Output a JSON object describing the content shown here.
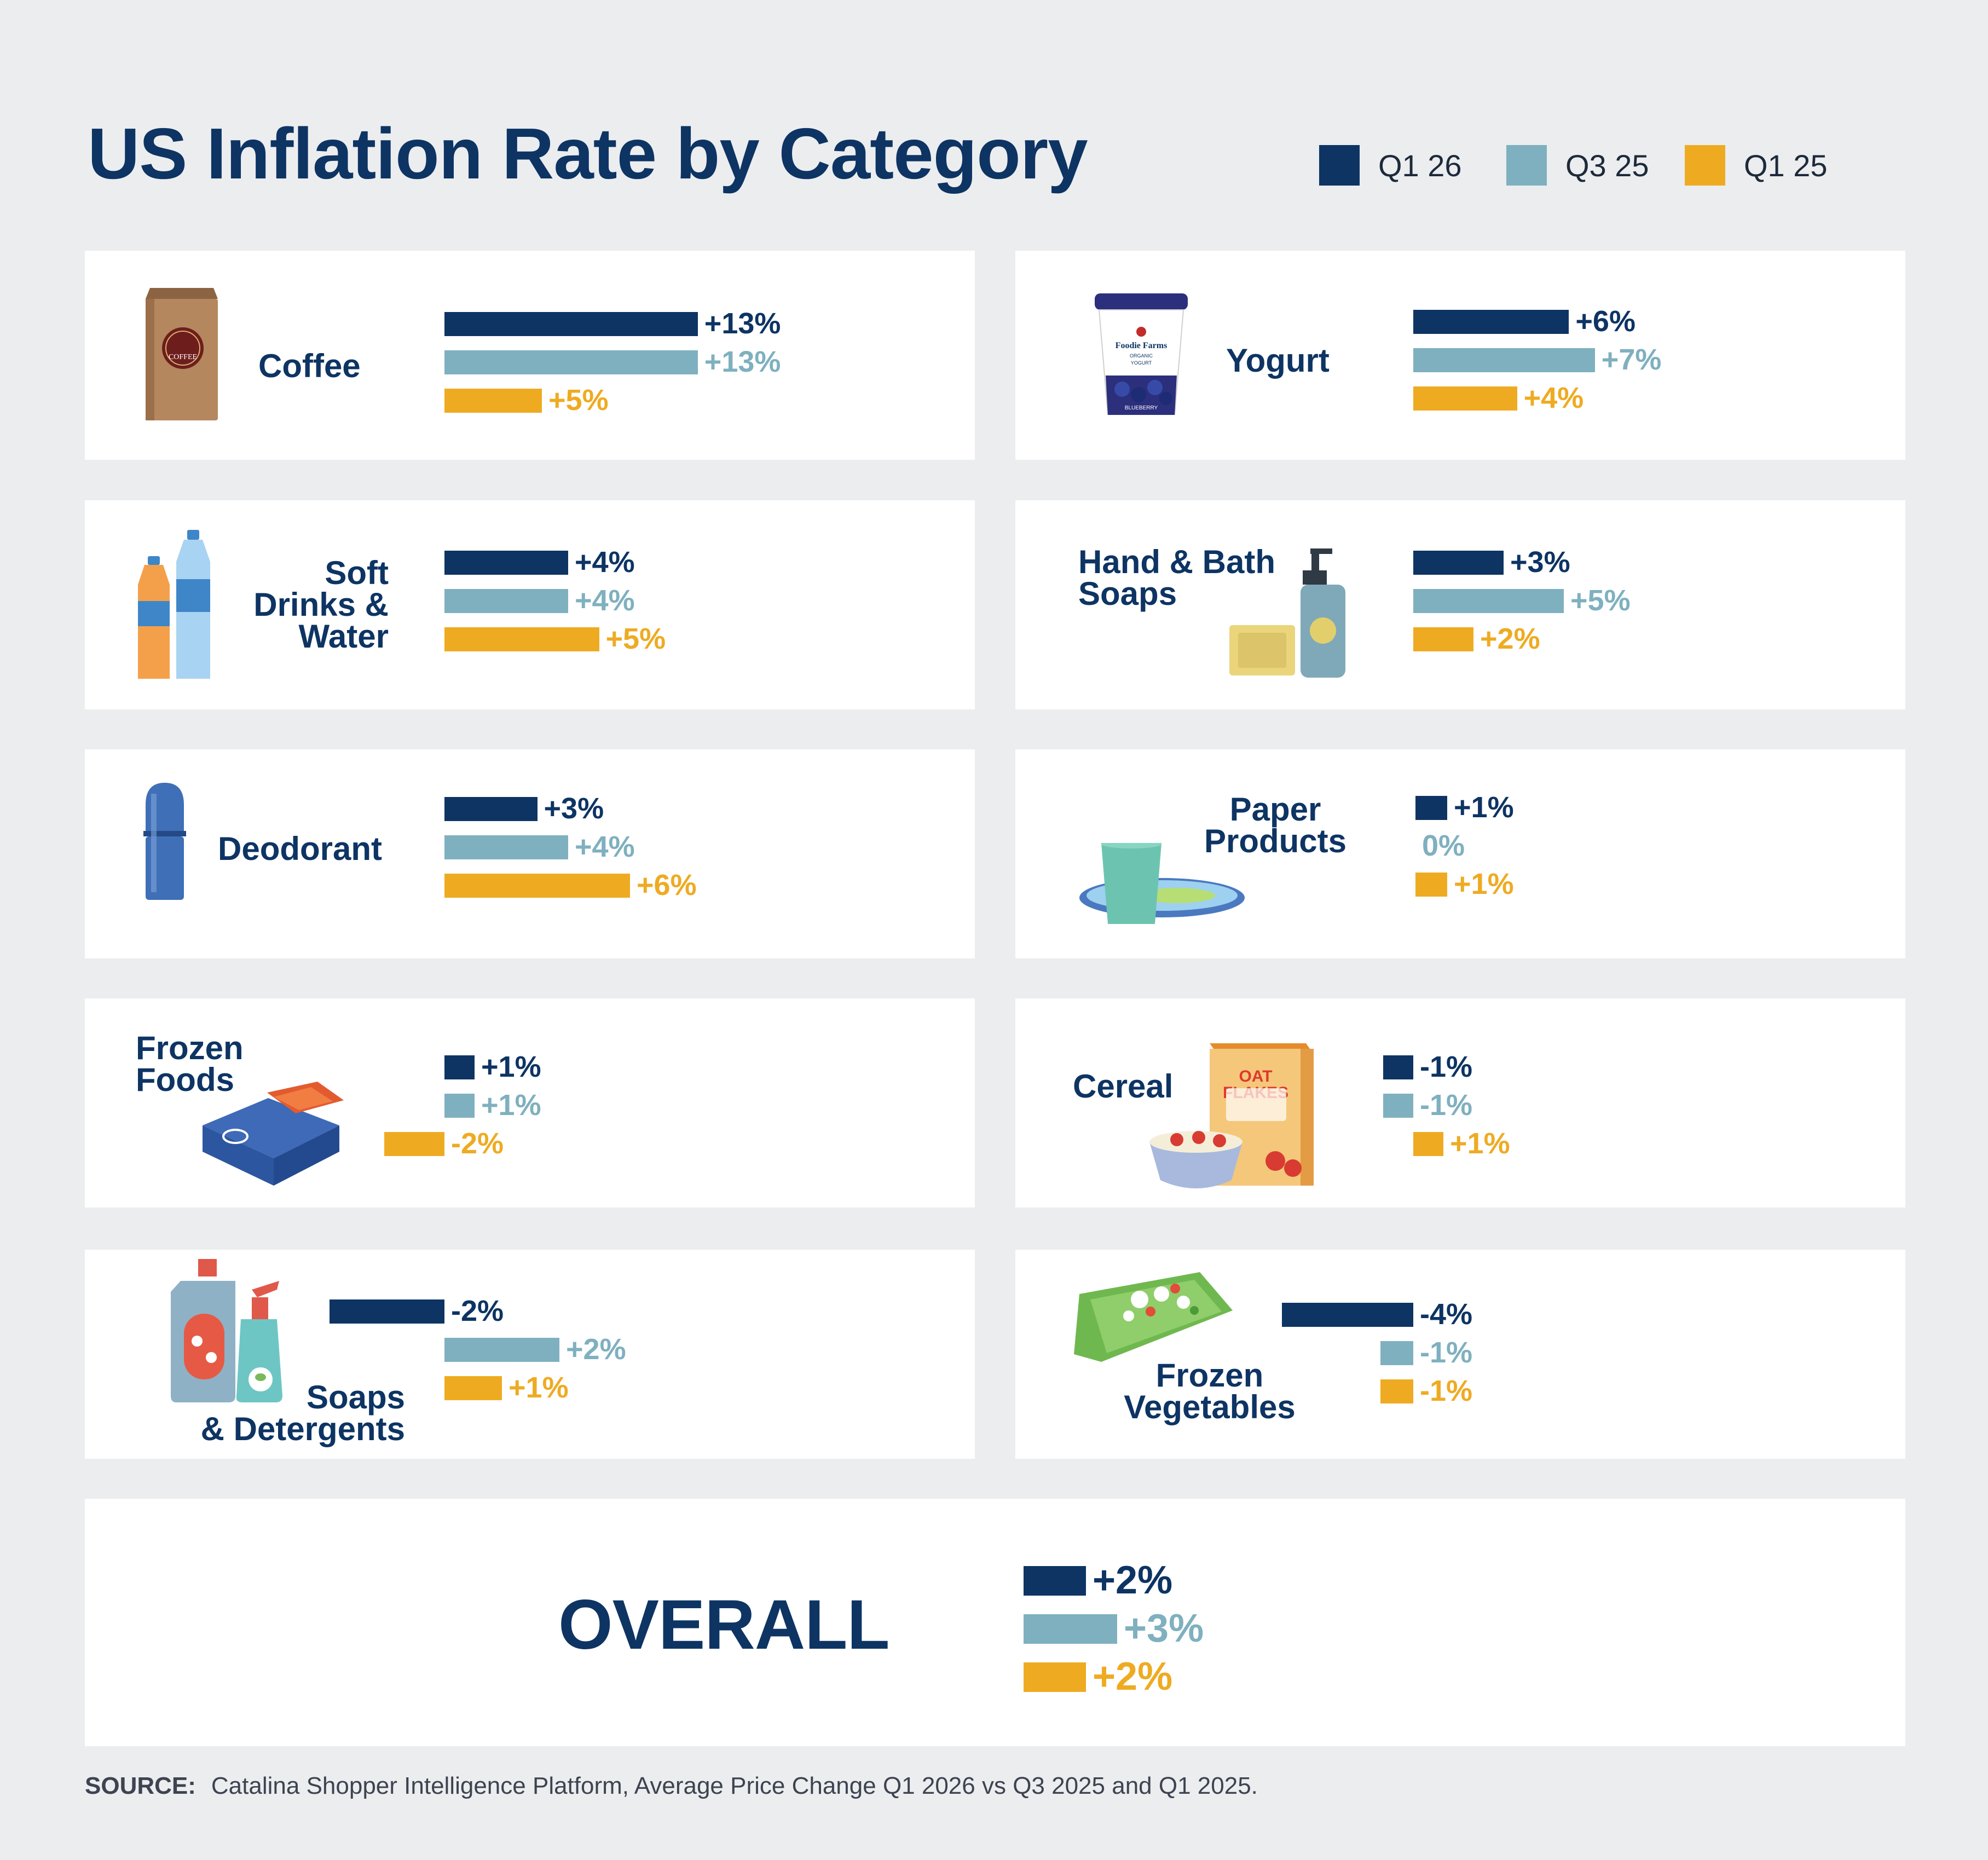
{
  "title": "US Inflation Rate by Category",
  "legend": [
    {
      "label": "Q1 26",
      "color": "#0d3463"
    },
    {
      "label": "Q3 25",
      "color": "#7fb0bf"
    },
    {
      "label": "Q1 25",
      "color": "#eeab22"
    }
  ],
  "categories": [
    {
      "name": "Coffee",
      "icon": "coffee-bag-icon"
    },
    {
      "name": "Yogurt",
      "icon": "yogurt-cup-icon"
    },
    {
      "name": "Soft\nDrinks &\nWater",
      "icon": "bottles-icon"
    },
    {
      "name": "Hand & Bath\nSoaps",
      "icon": "soap-pump-icon"
    },
    {
      "name": "Deodorant",
      "icon": "deodorant-icon"
    },
    {
      "name": "Paper\nProducts",
      "icon": "paper-plate-cup-icon"
    },
    {
      "name": "Frozen\nFoods",
      "icon": "frozen-fish-box-icon"
    },
    {
      "name": "Cereal",
      "icon": "cereal-box-icon"
    },
    {
      "name": "Soaps\n& Detergents",
      "icon": "detergent-bottles-icon"
    },
    {
      "name": "Frozen\nVegetables",
      "icon": "frozen-veg-bag-icon"
    }
  ],
  "chart_data": {
    "type": "bar",
    "orientation": "horizontal",
    "title": "US Inflation Rate by Category",
    "unit": "%",
    "categories": [
      "Coffee",
      "Yogurt",
      "Soft Drinks & Water",
      "Hand & Bath Soaps",
      "Deodorant",
      "Paper Products",
      "Frozen Foods",
      "Cereal",
      "Soaps & Detergents",
      "Frozen Vegetables",
      "OVERALL"
    ],
    "series": [
      {
        "name": "Q1 26",
        "color": "#0d3463",
        "values": [
          13,
          6,
          4,
          3,
          3,
          1,
          1,
          -1,
          -2,
          -4,
          2
        ],
        "labels": [
          "+13%",
          "+6%",
          "+4%",
          "+3%",
          "+3%",
          "+1%",
          "+1%",
          "-1%",
          "-2%",
          "-4%",
          "+2%"
        ]
      },
      {
        "name": "Q3 25",
        "color": "#7fb0bf",
        "values": [
          13,
          7,
          4,
          5,
          4,
          0,
          1,
          -1,
          2,
          -1,
          3
        ],
        "labels": [
          "+13%",
          "+7%",
          "+4%",
          "+5%",
          "+4%",
          "0%",
          "+1%",
          "-1%",
          "+2%",
          "-1%",
          "+3%"
        ]
      },
      {
        "name": "Q1 25",
        "color": "#eeab22",
        "values": [
          5,
          4,
          5,
          2,
          6,
          1,
          -2,
          1,
          1,
          -1,
          2
        ],
        "labels": [
          "+5%",
          "+4%",
          "+5%",
          "+2%",
          "+6%",
          "+1%",
          "-2%",
          "+1%",
          "+1%",
          "-1%",
          "+2%"
        ]
      }
    ]
  },
  "overall": {
    "label": "OVERALL"
  },
  "source": {
    "prefix": "SOURCE:",
    "text": "Catalina Shopper Intelligence Platform, Average Price Change Q1 2026 vs Q3 2025 and Q1 2025."
  },
  "icon_text": {
    "coffee": "COFFEE",
    "yogurt_brand": "Foodie Farms",
    "yogurt_sub": "ORGANIC",
    "yogurt_type": "YOGURT",
    "yogurt_flavor": "BLUEBERRY",
    "cereal": "OAT\nFLAKES"
  }
}
